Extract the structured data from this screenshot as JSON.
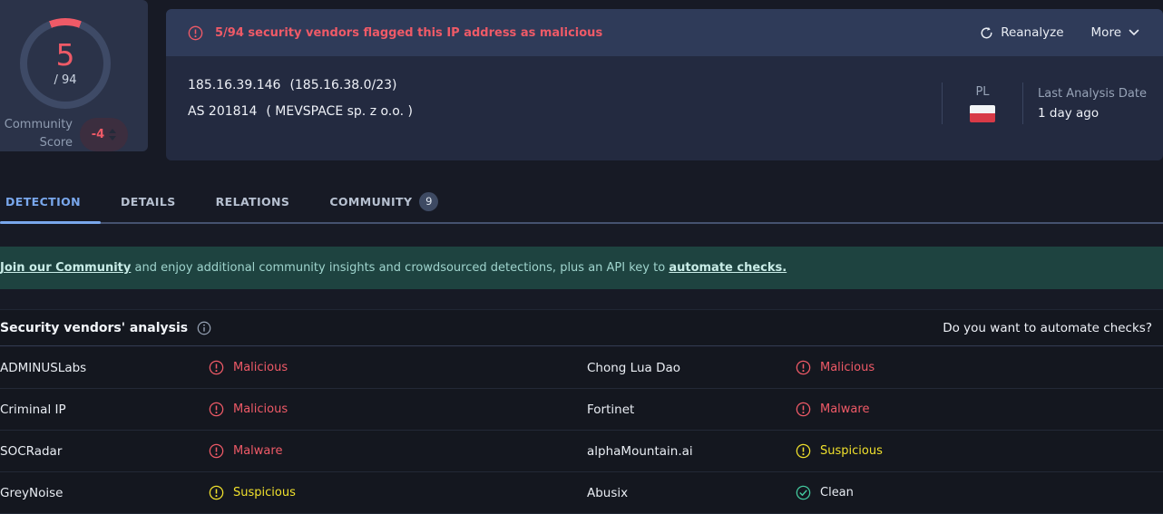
{
  "score_card": {
    "score": "5",
    "total": "/ 94",
    "label_line1": "Community",
    "label_line2": "Score",
    "community_score": "-4"
  },
  "alert_banner": {
    "message": "5/94 security vendors flagged this IP address as malicious",
    "reanalyze_label": "Reanalyze",
    "more_label": "More"
  },
  "ip_header": {
    "ip": "185.16.39.146",
    "network": "(185.16.38.0/23)",
    "asn": "AS 201814",
    "as_owner": "( MEVSPACE sp. z o.o. )",
    "country_code": "PL",
    "last_analysis_label": "Last Analysis Date",
    "last_analysis_value": "1 day ago"
  },
  "tabs": [
    {
      "id": "detection",
      "label": "DETECTION",
      "active": true
    },
    {
      "id": "details",
      "label": "DETAILS",
      "active": false
    },
    {
      "id": "relations",
      "label": "RELATIONS",
      "active": false
    },
    {
      "id": "community",
      "label": "COMMUNITY",
      "active": false,
      "badge": "9"
    }
  ],
  "community_banner": {
    "join_link": "Join our Community",
    "middle_text": " and enjoy additional community insights and crowdsourced detections, plus an API key to ",
    "automate_link": "automate checks."
  },
  "vendors": {
    "title": "Security vendors' analysis",
    "automate_prompt": "Do you want to automate checks?",
    "results": [
      {
        "vendor": "ADMINUSLabs",
        "verdict": "Malicious",
        "severity": "malicious"
      },
      {
        "vendor": "Chong Lua Dao",
        "verdict": "Malicious",
        "severity": "malicious"
      },
      {
        "vendor": "Criminal IP",
        "verdict": "Malicious",
        "severity": "malicious"
      },
      {
        "vendor": "Fortinet",
        "verdict": "Malware",
        "severity": "malicious"
      },
      {
        "vendor": "SOCRadar",
        "verdict": "Malware",
        "severity": "malicious"
      },
      {
        "vendor": "alphaMountain.ai",
        "verdict": "Suspicious",
        "severity": "suspicious"
      },
      {
        "vendor": "GreyNoise",
        "verdict": "Suspicious",
        "severity": "suspicious"
      },
      {
        "vendor": "Abusix",
        "verdict": "Clean",
        "severity": "clean"
      }
    ]
  },
  "colors": {
    "malicious_red": "#ef5a67",
    "suspicious_yellow": "#f0e02c",
    "clean_green": "#43c99e",
    "accent_blue": "#79a7ec",
    "banner_teal": "#1e4340"
  }
}
